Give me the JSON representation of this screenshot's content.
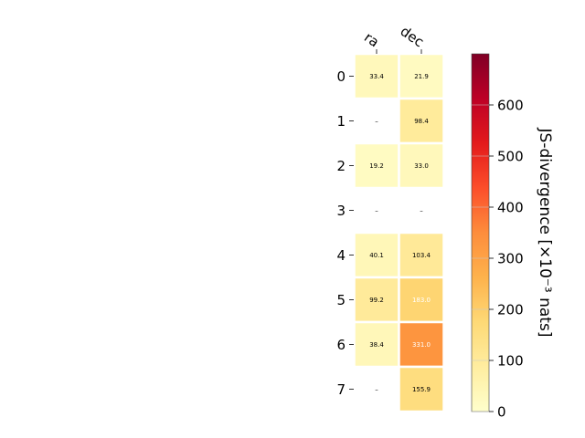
{
  "chart_data": {
    "type": "heatmap",
    "columns": [
      "ra",
      "dec"
    ],
    "rows": [
      "0",
      "1",
      "2",
      "3",
      "4",
      "5",
      "6",
      "7"
    ],
    "values": [
      [
        33.4,
        21.9
      ],
      [
        null,
        98.4
      ],
      [
        19.2,
        33.0
      ],
      [
        null,
        null
      ],
      [
        40.1,
        103.4
      ],
      [
        99.2,
        183.0
      ],
      [
        38.4,
        331.0
      ],
      [
        null,
        155.9
      ]
    ],
    "labels": [
      [
        "33.4",
        "21.9"
      ],
      [
        "–",
        "98.4"
      ],
      [
        "19.2",
        "33.0"
      ],
      [
        "–",
        "–"
      ],
      [
        "40.1",
        "103.4"
      ],
      [
        "99.2",
        "183.0"
      ],
      [
        "38.4",
        "331.0"
      ],
      [
        "–",
        "155.9"
      ]
    ],
    "colorbar": {
      "label": "JS-divergence [×10⁻³ nats]",
      "range": [
        0,
        700
      ],
      "ticks": [
        0,
        100,
        200,
        300,
        400,
        500,
        600
      ],
      "tick_labels": [
        "0",
        "100",
        "200",
        "300",
        "400",
        "500",
        "600"
      ],
      "colormap": "YlOrRd"
    }
  }
}
